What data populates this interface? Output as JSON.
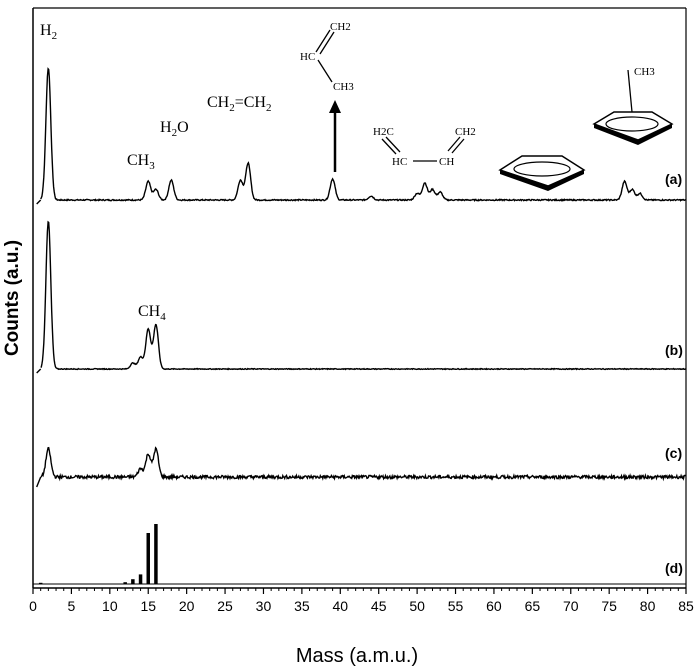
{
  "chart_data": {
    "type": "line",
    "xlabel": "Mass (a.m.u.)",
    "ylabel": "Counts (a.u.)",
    "xlim": [
      0,
      85
    ],
    "xticks": [
      0,
      5,
      10,
      15,
      20,
      25,
      30,
      35,
      40,
      45,
      50,
      55,
      60,
      65,
      70,
      75,
      80,
      85
    ],
    "series": [
      {
        "label": "(a)",
        "peaks": [
          [
            2,
            100
          ],
          [
            15,
            14
          ],
          [
            16,
            8
          ],
          [
            18,
            15
          ],
          [
            27,
            15
          ],
          [
            28,
            28
          ],
          [
            39,
            16
          ],
          [
            44,
            3
          ],
          [
            50,
            5
          ],
          [
            51,
            13
          ],
          [
            52,
            8
          ],
          [
            53,
            6
          ],
          [
            77,
            14
          ],
          [
            78,
            8
          ],
          [
            79,
            5
          ]
        ],
        "annotations": [
          {
            "text": "H",
            "sub": "2",
            "x": 2
          },
          {
            "text": "CH",
            "sub": "3",
            "x": 15
          },
          {
            "text": "H",
            "sub": "2",
            "post": "O",
            "x": 18
          },
          {
            "text": "CH",
            "sub": "2",
            "post": "=CH",
            "sub2": "2",
            "x": 28
          }
        ],
        "structures": {
          "propene": {
            "ch2": "CH2",
            "hc": "HC",
            "ch3": "CH3"
          },
          "butadiene": {
            "h2c": "H2C",
            "hc": "HC",
            "ch": "CH",
            "ch2": "CH2"
          },
          "toluene": {
            "ch3": "CH3"
          }
        }
      },
      {
        "label": "(b)",
        "peaks": [
          [
            2,
            100
          ],
          [
            13,
            4
          ],
          [
            14,
            8
          ],
          [
            15,
            27
          ],
          [
            16,
            30
          ]
        ],
        "annotations": [
          {
            "text": "CH",
            "sub": "4",
            "x": 16
          }
        ]
      },
      {
        "label": "(c)",
        "peaks": [
          [
            2,
            40
          ],
          [
            14,
            12
          ],
          [
            15,
            33
          ],
          [
            16,
            40
          ]
        ]
      },
      {
        "label": "(d)",
        "type": "stick",
        "sticks": [
          [
            1,
            2
          ],
          [
            12,
            3
          ],
          [
            13,
            8
          ],
          [
            14,
            16
          ],
          [
            15,
            85
          ],
          [
            16,
            100
          ]
        ]
      }
    ]
  }
}
